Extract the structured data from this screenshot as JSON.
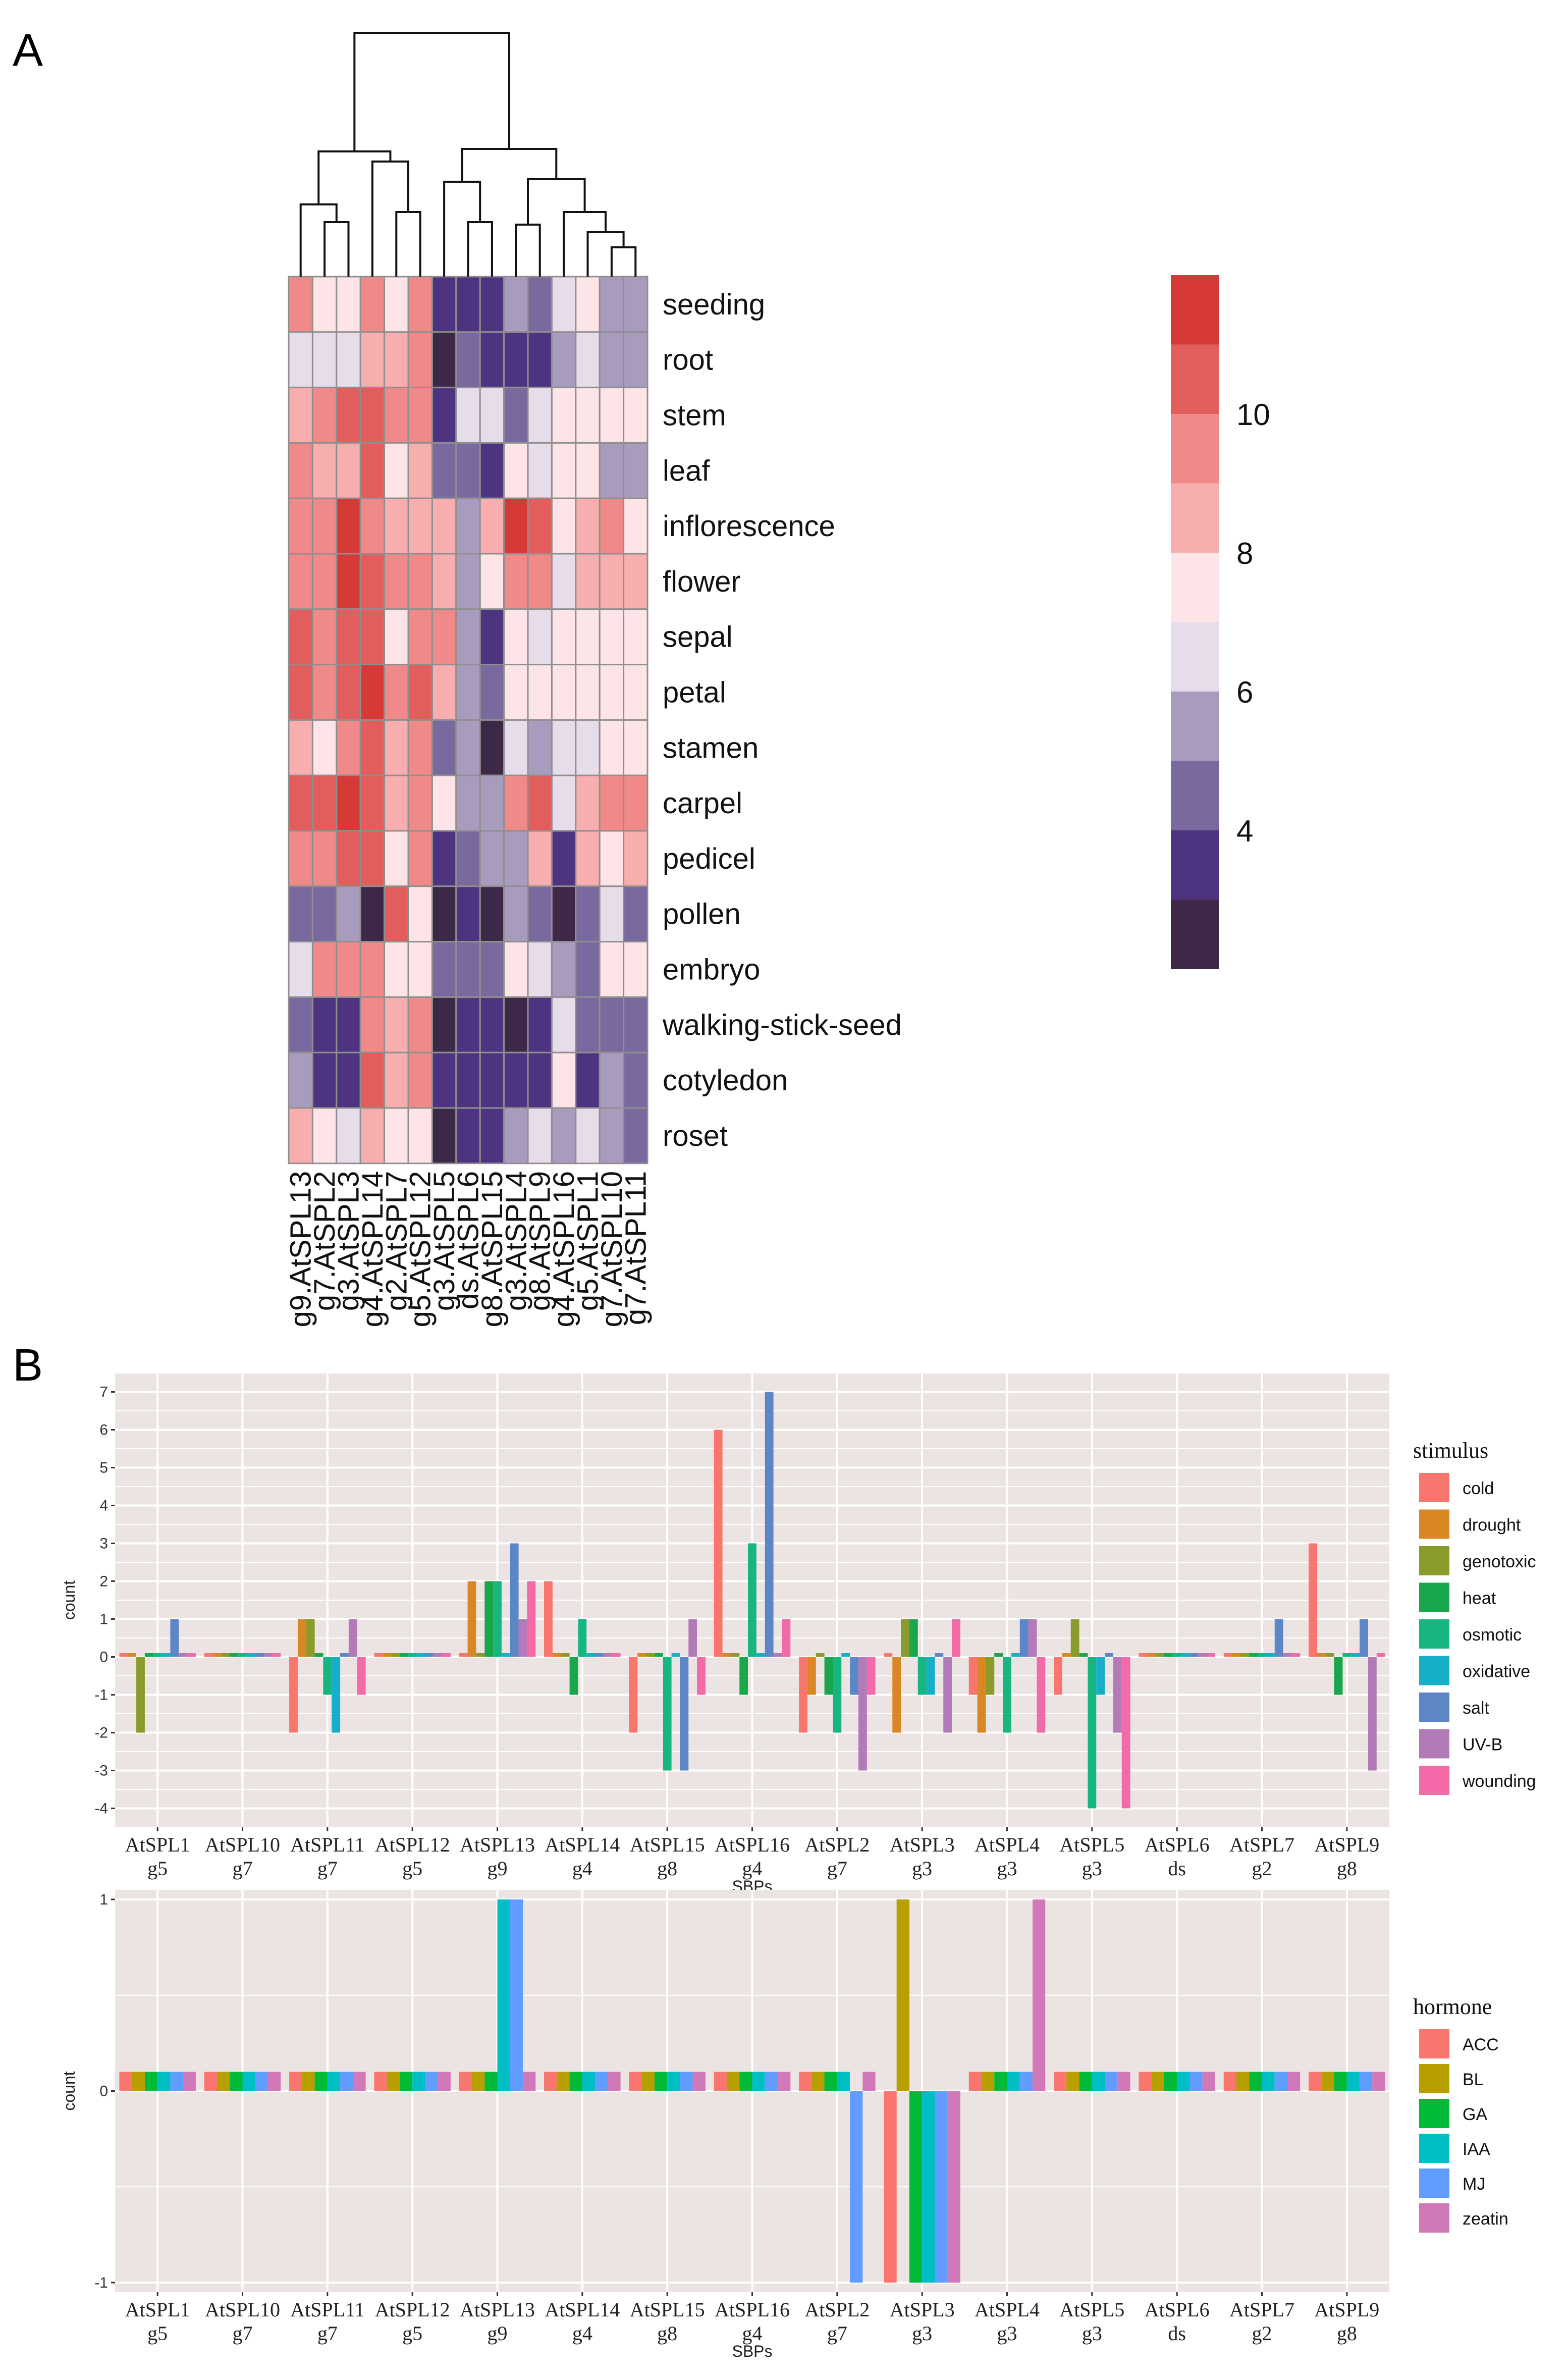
{
  "panel_labels": {
    "a": "A",
    "b": "B"
  },
  "chart_data": [
    {
      "type": "heatmap",
      "panel": "A",
      "title": "",
      "columns": [
        "g9.AtSPL13",
        "g7.AtSPL2",
        "g3.AtSPL3",
        "g4.AtSPL14",
        "g2.AtSPL7",
        "g5.AtSPL12",
        "g3.AtSPL5",
        "ds.AtSPL6",
        "g8.AtSPL15",
        "g3.AtSPL4",
        "g8.AtSPL9",
        "g4.AtSPL16",
        "g5.AtSPL1",
        "g7.AtSPL10",
        "g7.AtSPL11"
      ],
      "rows": [
        "seeding",
        "root",
        "stem",
        "leaf",
        "inflorescence",
        "flower",
        "sepal",
        "petal",
        "stamen",
        "carpel",
        "pedicel",
        "pollen",
        "embryo",
        "walking-stick-seed",
        "cotyledon",
        "roset"
      ],
      "values": [
        [
          9.5,
          7.8,
          7.8,
          9.8,
          7.9,
          9,
          3.3,
          3.2,
          3.2,
          5,
          4.4,
          6.4,
          7.9,
          5.5,
          5.5
        ],
        [
          6.5,
          6.5,
          6.5,
          8.7,
          8.8,
          9.3,
          2.5,
          4.5,
          3.3,
          3,
          3,
          5,
          6.5,
          5,
          5
        ],
        [
          8.7,
          9.5,
          10,
          10,
          9.6,
          9.5,
          3.6,
          6.7,
          6,
          4.5,
          6.8,
          7.5,
          7.5,
          7.5,
          7.5
        ],
        [
          9.5,
          8.7,
          8.8,
          10,
          7.4,
          8.7,
          4.6,
          4.5,
          3.3,
          7.5,
          6,
          7.4,
          7.4,
          5.5,
          5.7
        ],
        [
          9.4,
          9.4,
          11,
          9.5,
          8.9,
          8.9,
          8.7,
          5.5,
          8.7,
          11,
          10,
          7.5,
          8.7,
          9.5,
          7.5
        ],
        [
          9.5,
          9.6,
          11,
          10,
          9.2,
          9,
          8.7,
          5.5,
          7,
          9.6,
          9.8,
          6.8,
          8.4,
          8.9,
          8.2
        ],
        [
          10,
          9.4,
          10,
          10,
          7.4,
          9.5,
          9.5,
          5.5,
          3.2,
          7,
          6.9,
          7.9,
          7.9,
          7.9,
          7.9
        ],
        [
          10.3,
          9.4,
          10.3,
          11,
          9.2,
          10,
          8.6,
          5.5,
          4.7,
          7.6,
          7.6,
          7.8,
          7.8,
          7.8,
          7.8
        ],
        [
          8.7,
          7.6,
          9,
          10.3,
          8.8,
          9.5,
          4.6,
          5.5,
          2.3,
          6.5,
          5.5,
          6.5,
          6.4,
          7.2,
          7.2
        ],
        [
          10.3,
          10,
          11,
          10.3,
          8.9,
          9.5,
          7.5,
          5.5,
          5.5,
          9.5,
          10,
          6.8,
          8.4,
          9.5,
          9.6
        ],
        [
          9.5,
          9.4,
          10,
          10.3,
          7.5,
          9.5,
          3.3,
          4.5,
          5.5,
          5.2,
          8.6,
          3.2,
          8.6,
          7.5,
          8.6
        ],
        [
          4.5,
          4.5,
          5.5,
          2.3,
          10.1,
          7.5,
          2.5,
          3.3,
          2.3,
          5.3,
          4.5,
          2.3,
          4.5,
          6.5,
          4.5
        ],
        [
          6.5,
          9.1,
          9.5,
          9.5,
          7.8,
          7.7,
          4.6,
          4.5,
          4.5,
          7.5,
          6.8,
          5.3,
          4.6,
          7.5,
          7.5
        ],
        [
          4.5,
          3.2,
          3.3,
          9,
          8.7,
          9.2,
          2.4,
          3.2,
          3.2,
          2.5,
          3.3,
          6.5,
          4.5,
          4.6,
          4.6
        ],
        [
          5.5,
          3.3,
          3.7,
          10,
          8.8,
          9.5,
          3.3,
          3.3,
          3.2,
          3.3,
          3.3,
          7.5,
          3.3,
          5.5,
          4.6
        ],
        [
          8.8,
          7.6,
          6.5,
          8.9,
          7.7,
          7.8,
          2.4,
          3.3,
          3.3,
          5.2,
          6.5,
          5.5,
          6.5,
          5.5,
          4.6
        ]
      ],
      "color_scale": {
        "colors": [
          "#3d2848",
          "#4e3380",
          "#7a699e",
          "#a99bbe",
          "#e6dcea",
          "#fde4e6",
          "#f8aeae",
          "#f08a88",
          "#e25e5d",
          "#d63a37"
        ],
        "ticks": [
          4,
          6,
          8,
          10
        ],
        "range": [
          2,
          12
        ]
      },
      "dendrogram": "hierarchical clustering of columns"
    },
    {
      "type": "bar",
      "panel": "B-top",
      "categories": [
        "AtSPL1",
        "AtSPL10",
        "AtSPL11",
        "AtSPL12",
        "AtSPL13",
        "AtSPL14",
        "AtSPL15",
        "AtSPL16",
        "AtSPL2",
        "AtSPL3",
        "AtSPL4",
        "AtSPL5",
        "AtSPL6",
        "AtSPL7",
        "AtSPL9"
      ],
      "groups": [
        "g5",
        "g7",
        "g7",
        "g5",
        "g9",
        "g4",
        "g8",
        "g4",
        "g7",
        "g3",
        "g3",
        "g3",
        "ds",
        "g2",
        "g8"
      ],
      "xlabel": "SBPs",
      "ylabel": "count",
      "ylim": [
        -4.5,
        7.5
      ],
      "yticks": [
        -4,
        -3,
        -2,
        -1,
        0,
        1,
        2,
        3,
        4,
        5,
        6,
        7
      ],
      "legend_title": "stimulus",
      "legend_position": "right",
      "series": [
        {
          "name": "cold",
          "color": "#f8766d",
          "values": [
            0.1,
            0.1,
            -2,
            0.1,
            0.1,
            2,
            -2,
            6,
            -2,
            0.1,
            -1,
            -1,
            0.1,
            0.1,
            3
          ]
        },
        {
          "name": "drought",
          "color": "#d98725",
          "values": [
            0.1,
            0.1,
            1,
            0.1,
            2,
            0.1,
            0.1,
            0.1,
            -1,
            -2,
            -2,
            0.1,
            0.1,
            0.1,
            0.1
          ]
        },
        {
          "name": "genotoxic",
          "color": "#8a9a2b",
          "values": [
            -2,
            0.1,
            1,
            0.1,
            0.1,
            0.1,
            0.1,
            0.1,
            0.1,
            1,
            -1,
            1,
            0.1,
            0.1,
            0.1
          ]
        },
        {
          "name": "heat",
          "color": "#1aa64a",
          "values": [
            0.1,
            0.1,
            0.1,
            0.1,
            2,
            -1,
            0.1,
            -1,
            -1,
            1,
            0.1,
            0.1,
            0.1,
            0.1,
            -1
          ]
        },
        {
          "name": "osmotic",
          "color": "#17b57f",
          "values": [
            0.1,
            0.1,
            -1,
            0.1,
            2,
            1,
            -3,
            3,
            -2,
            -1,
            -2,
            -4,
            0.1,
            0.1,
            0.1
          ]
        },
        {
          "name": "oxidative",
          "color": "#17aec8",
          "values": [
            0.1,
            0.1,
            -2,
            0.1,
            0.1,
            0.1,
            0.1,
            0.1,
            0.1,
            -1,
            0.1,
            -1,
            0.1,
            0.1,
            0.1
          ]
        },
        {
          "name": "salt",
          "color": "#5c86c6",
          "values": [
            1,
            0.1,
            0.1,
            0.1,
            3,
            0.1,
            -3,
            7,
            -1,
            0.1,
            1,
            0.1,
            0.1,
            1,
            1
          ]
        },
        {
          "name": "UV-B",
          "color": "#b27ab6",
          "values": [
            0.1,
            0.1,
            1,
            0.1,
            1,
            0.1,
            1,
            0.1,
            -3,
            -2,
            1,
            -2,
            0.1,
            0.1,
            -3
          ]
        },
        {
          "name": "wounding",
          "color": "#f26aa8",
          "values": [
            0.1,
            0.1,
            -1,
            0.1,
            2,
            0.1,
            -1,
            1,
            -1,
            1,
            -2,
            -4,
            0.1,
            0.1,
            0.1
          ]
        }
      ]
    },
    {
      "type": "bar",
      "panel": "B-bottom",
      "categories": [
        "AtSPL1",
        "AtSPL10",
        "AtSPL11",
        "AtSPL12",
        "AtSPL13",
        "AtSPL14",
        "AtSPL15",
        "AtSPL16",
        "AtSPL2",
        "AtSPL3",
        "AtSPL4",
        "AtSPL5",
        "AtSPL6",
        "AtSPL7",
        "AtSPL9"
      ],
      "groups": [
        "g5",
        "g7",
        "g7",
        "g5",
        "g9",
        "g4",
        "g8",
        "g4",
        "g7",
        "g3",
        "g3",
        "g3",
        "ds",
        "g2",
        "g8"
      ],
      "xlabel": "SBPs",
      "ylabel": "count",
      "ylim": [
        -1.05,
        1.05
      ],
      "yticks": [
        -1,
        0,
        1
      ],
      "legend_title": "hormone",
      "legend_position": "right",
      "series": [
        {
          "name": "ACC",
          "color": "#f8766d",
          "values": [
            0.1,
            0.1,
            0.1,
            0.1,
            0.1,
            0.1,
            0.1,
            0.1,
            0.1,
            -1,
            0.1,
            0.1,
            0.1,
            0.1,
            0.1
          ]
        },
        {
          "name": "BL",
          "color": "#b79f00",
          "values": [
            0.1,
            0.1,
            0.1,
            0.1,
            0.1,
            0.1,
            0.1,
            0.1,
            0.1,
            1,
            0.1,
            0.1,
            0.1,
            0.1,
            0.1
          ]
        },
        {
          "name": "GA",
          "color": "#00ba38",
          "values": [
            0.1,
            0.1,
            0.1,
            0.1,
            0.1,
            0.1,
            0.1,
            0.1,
            0.1,
            -1,
            0.1,
            0.1,
            0.1,
            0.1,
            0.1
          ]
        },
        {
          "name": "IAA",
          "color": "#00bfc4",
          "values": [
            0.1,
            0.1,
            0.1,
            0.1,
            1,
            0.1,
            0.1,
            0.1,
            0.1,
            -1,
            0.1,
            0.1,
            0.1,
            0.1,
            0.1
          ]
        },
        {
          "name": "MJ",
          "color": "#619cff",
          "values": [
            0.1,
            0.1,
            0.1,
            0.1,
            1,
            0.1,
            0.1,
            0.1,
            -1,
            -1,
            0.1,
            0.1,
            0.1,
            0.1,
            0.1
          ]
        },
        {
          "name": "zeatin",
          "color": "#d078b8",
          "values": [
            0.1,
            0.1,
            0.1,
            0.1,
            0.1,
            0.1,
            0.1,
            0.1,
            0.1,
            -1,
            1,
            0.1,
            0.1,
            0.1,
            0.1
          ]
        }
      ]
    }
  ]
}
